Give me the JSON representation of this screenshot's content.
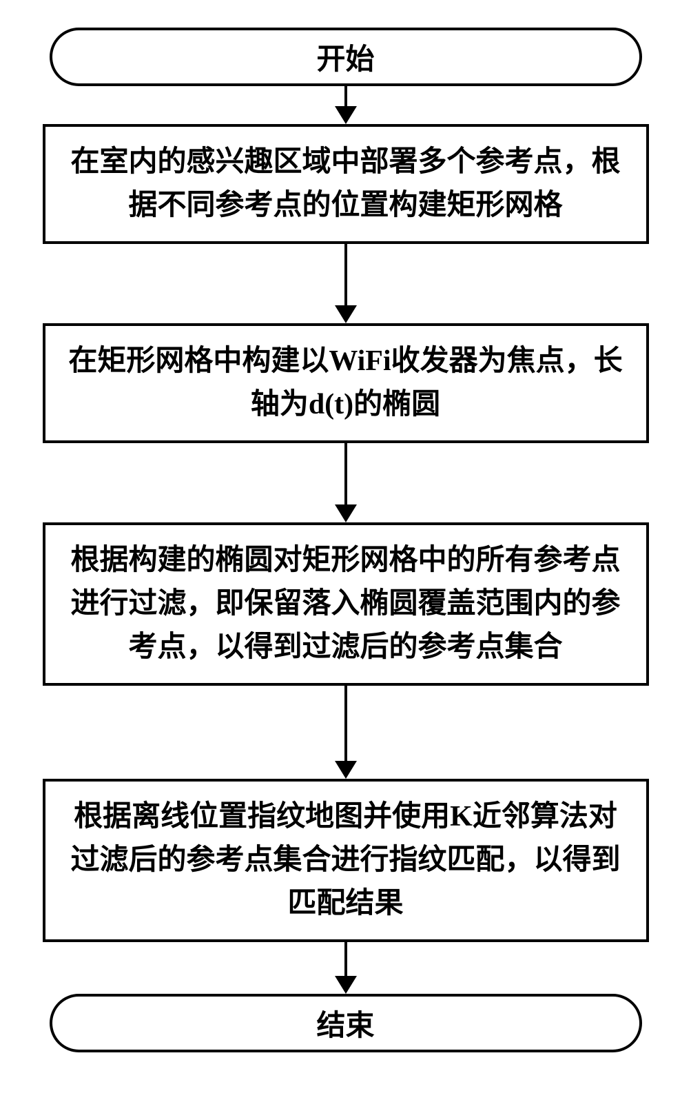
{
  "flowchart": {
    "type": "flowchart",
    "background_color": "#ffffff",
    "node_border_color": "#000000",
    "node_border_width": 4,
    "node_fill": "#ffffff",
    "text_color": "#000000",
    "font_family": "SimSun",
    "font_size_pt": 32,
    "font_weight": "bold",
    "arrow_color": "#000000",
    "arrow_line_width": 4,
    "arrow_head_size": 26,
    "nodes": [
      {
        "id": "start",
        "shape": "terminator",
        "label": "开始"
      },
      {
        "id": "step1",
        "shape": "process",
        "label": "在室内的感兴趣区域中部署多个参考点，根据不同参考点的位置构建矩形网格"
      },
      {
        "id": "step2",
        "shape": "process",
        "label": "在矩形网格中构建以WiFi收发器为焦点，长轴为d(t)的椭圆"
      },
      {
        "id": "step3",
        "shape": "process",
        "label": "根据构建的椭圆对矩形网格中的所有参考点进行过滤，即保留落入椭圆覆盖范围内的参考点，以得到过滤后的参考点集合"
      },
      {
        "id": "step4",
        "shape": "process",
        "label": "根据离线位置指纹地图并使用K近邻算法对过滤后的参考点集合进行指纹匹配，以得到匹配结果"
      },
      {
        "id": "end",
        "shape": "terminator",
        "label": "结束"
      }
    ],
    "edges": [
      {
        "from": "start",
        "to": "step1",
        "length": 30
      },
      {
        "from": "step1",
        "to": "step2",
        "length": 90
      },
      {
        "from": "step2",
        "to": "step3",
        "length": 90
      },
      {
        "from": "step3",
        "to": "step4",
        "length": 110
      },
      {
        "from": "step4",
        "to": "end",
        "length": 50
      }
    ]
  }
}
